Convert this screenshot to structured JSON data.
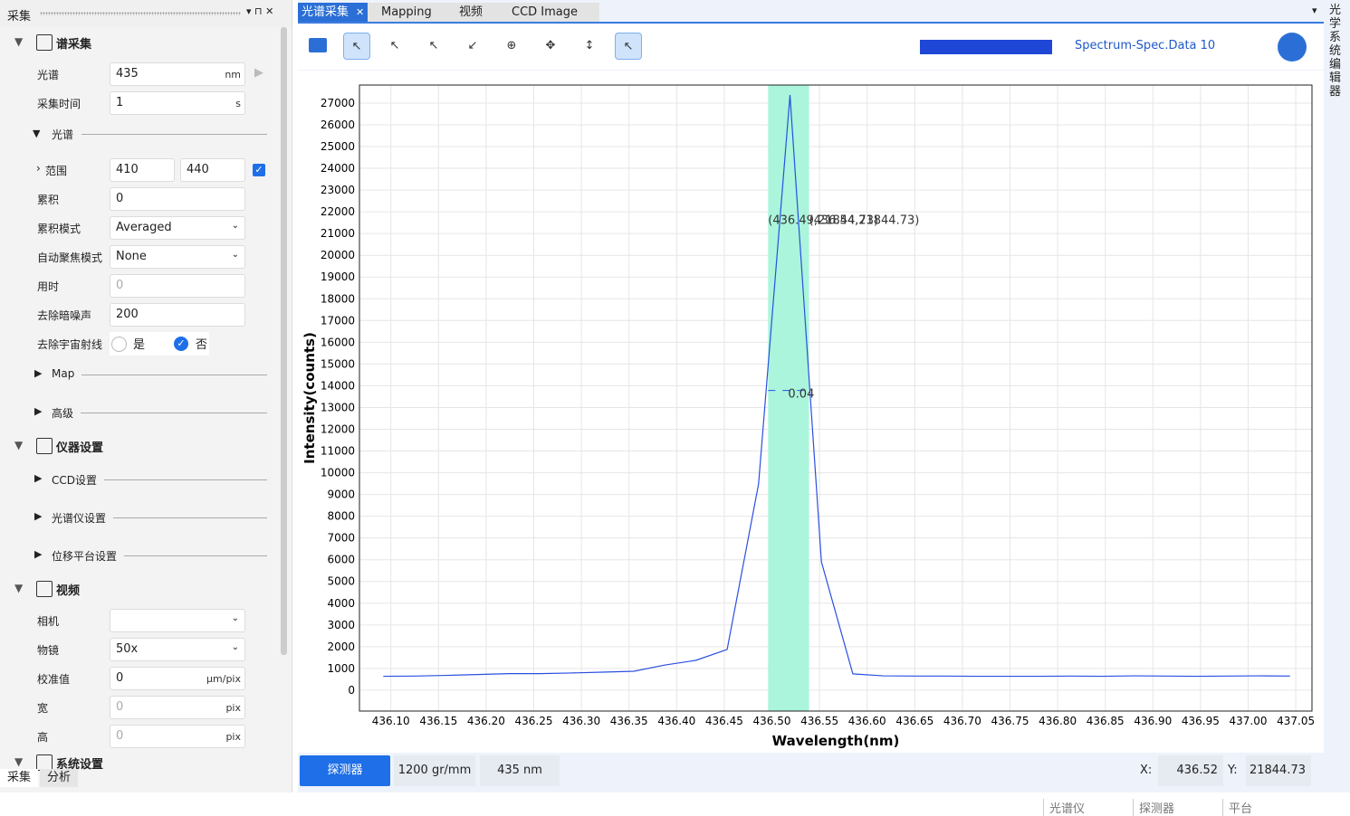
{
  "panel": {
    "title": "采集",
    "sections": [
      "谱采集",
      "仪器设置",
      "视频",
      "系统设置"
    ],
    "inputs": [
      {
        "label": "光谱",
        "value": "435",
        "unit": "nm"
      },
      {
        "label": "采集时间",
        "value": "1",
        "unit": "s"
      }
    ],
    "spectrum_group": "光谱",
    "range": {
      "label": "范围",
      "min": "410",
      "max": "440"
    },
    "spectrum_rows": [
      {
        "label": "累积",
        "value": "0"
      },
      {
        "label": "累积模式",
        "value": "Averaged"
      },
      {
        "label": "自动聚焦模式",
        "value": "None"
      },
      {
        "label": "用时",
        "value": "0"
      },
      {
        "label": "去除暗噪声",
        "value": "200"
      }
    ],
    "cosmic": {
      "label": "去除宇宙射线",
      "yes": "是",
      "no": "否"
    },
    "groups": [
      "Map",
      "高级",
      "CCD设置",
      "光谱仪设置",
      "位移平台设置"
    ],
    "video_rows": [
      {
        "label": "相机"
      },
      {
        "label": "物镜",
        "value": "50x"
      },
      {
        "label": "校准值",
        "value": "0",
        "unit": "µm/pix"
      },
      {
        "label": "宽",
        "value": "0",
        "unit": "pix"
      },
      {
        "label": "高",
        "value": "0",
        "unit": "pix"
      }
    ],
    "tabs": [
      "采集",
      "分析"
    ]
  },
  "tabs": [
    "光谱采集",
    "Mapping",
    "视频",
    "CCD Image"
  ],
  "toolbar": {
    "dataset": "Spectrum-Spec.Data 10"
  },
  "chart_data": {
    "type": "line",
    "x_label": "Wavelength(nm)",
    "y_label": "Intensity(counts)",
    "x": [
      436.092,
      436.125,
      436.158,
      436.191,
      436.224,
      436.256,
      436.289,
      436.322,
      436.355,
      436.388,
      436.42,
      436.453,
      436.486,
      436.519,
      436.552,
      436.585,
      436.617,
      436.65,
      436.683,
      436.716,
      436.749,
      436.781,
      436.814,
      436.847,
      436.88,
      436.913,
      436.945,
      436.978,
      437.011,
      437.044
    ],
    "series": [
      {
        "color": "#2a4fe0",
        "values": [
          640,
          650,
          680,
          720,
          760,
          760,
          790,
          830,
          870,
          1160,
          1370,
          1870,
          9480,
          27370,
          5900,
          750,
          660,
          650,
          650,
          640,
          640,
          640,
          650,
          640,
          660,
          650,
          640,
          650,
          660,
          650
        ]
      }
    ],
    "xlim": [
      436.067,
      437.067
    ],
    "ylim": [
      -960,
      27830
    ],
    "xticks": [
      {
        "value": 436.1,
        "label": "436.10"
      },
      {
        "value": 436.15,
        "label": "436.15"
      },
      {
        "value": 436.2,
        "label": "436.20"
      },
      {
        "value": 436.25,
        "label": "436.25"
      },
      {
        "value": 436.3,
        "label": "436.30"
      },
      {
        "value": 436.35,
        "label": "436.35"
      },
      {
        "value": 436.4,
        "label": "436.40"
      },
      {
        "value": 436.45,
        "label": "436.45"
      },
      {
        "value": 436.5,
        "label": "436.50"
      },
      {
        "value": 436.55,
        "label": "436.55"
      },
      {
        "value": 436.6,
        "label": "436.60"
      },
      {
        "value": 436.65,
        "label": "436.65"
      },
      {
        "value": 436.7,
        "label": "436.70"
      },
      {
        "value": 436.75,
        "label": "436.75"
      },
      {
        "value": 436.8,
        "label": "436.80"
      },
      {
        "value": 436.85,
        "label": "436.85"
      },
      {
        "value": 436.9,
        "label": "436.90"
      },
      {
        "value": 436.95,
        "label": "436.95"
      },
      {
        "value": 437.0,
        "label": "437.00"
      },
      {
        "value": 437.05,
        "label": "437.05"
      }
    ],
    "yticks": [
      0,
      1000,
      2000,
      3000,
      4000,
      5000,
      6000,
      7000,
      8000,
      9000,
      10000,
      11000,
      12000,
      13000,
      14000,
      15000,
      16000,
      17000,
      18000,
      19000,
      20000,
      21000,
      22000,
      23000,
      24000,
      25000,
      26000,
      27000
    ],
    "grid": true,
    "highlight_band": [
      436.496,
      436.539
    ],
    "highlight_color": "#aaf5dc",
    "annotations": [
      {
        "text": "(436.49,21844.73)",
        "x": 436.496,
        "y": 21440
      },
      {
        "text": "(436.54,21844.73)",
        "x": 436.539,
        "y": 21440
      },
      {
        "text": "0.04",
        "x": 436.517,
        "y": 13450
      }
    ]
  },
  "status_bar": {
    "detector": "探测器",
    "grating": "1200 gr/mm",
    "wavelength": "435 nm",
    "x_label": "X:",
    "x_value": "436.52",
    "y_label": "Y:",
    "y_value": "21844.73"
  },
  "right_tab": "光学系统编辑器",
  "footer": [
    "光谱仪",
    "探测器",
    "平台"
  ]
}
